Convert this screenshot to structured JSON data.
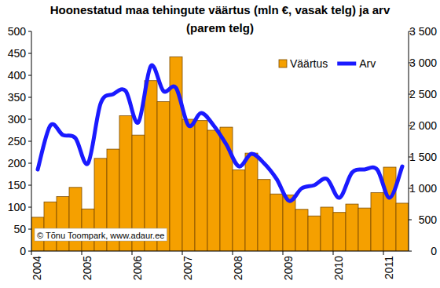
{
  "chart_data": {
    "type": "bar",
    "title": "Hoonestatud maa tehingute väärtus (mln €, vasak telg) ja arv (parem telg)",
    "categories": [
      "2004",
      null,
      null,
      null,
      "2005",
      null,
      null,
      null,
      "2006",
      null,
      null,
      null,
      "2007",
      null,
      null,
      null,
      "2008",
      null,
      null,
      null,
      "2009",
      null,
      null,
      null,
      "2010",
      null,
      null,
      null,
      "2011",
      null
    ],
    "series": [
      {
        "name": "Väärtus",
        "type": "bar",
        "color": "#f5a000",
        "values": [
          77,
          112,
          124,
          145,
          96,
          211,
          232,
          308,
          264,
          388,
          340,
          442,
          300,
          297,
          275,
          282,
          185,
          223,
          163,
          130,
          128,
          95,
          80,
          100,
          88,
          107,
          98,
          133,
          191,
          109
        ]
      },
      {
        "name": "Arv",
        "type": "line",
        "axis": "y2",
        "color": "#1a1aff",
        "values": [
          1300,
          2000,
          1850,
          1800,
          1400,
          2350,
          2500,
          2550,
          2050,
          2950,
          2550,
          2600,
          2000,
          2200,
          2000,
          1700,
          1350,
          1550,
          1400,
          1150,
          800,
          1000,
          1050,
          1150,
          850,
          1250,
          1300,
          1300,
          850,
          1350
        ]
      }
    ],
    "ylim": [
      0,
      500
    ],
    "yticks": [
      0,
      50,
      100,
      150,
      200,
      250,
      300,
      350,
      400,
      450,
      500
    ],
    "y2lim": [
      0,
      3500
    ],
    "y2ticks": [
      0,
      500,
      {
        "value": 1000,
        "label": "1 000"
      },
      {
        "value": 1500,
        "label": "1 500"
      },
      {
        "value": 2000,
        "label": "2 000"
      },
      {
        "value": 2500,
        "label": "2 500"
      },
      {
        "value": 3000,
        "label": "3 000"
      },
      {
        "value": 3500,
        "label": "3 500"
      }
    ],
    "grid": false,
    "legend": "upper right",
    "annotations": [
      "© Tõnu Toompark, www.adaur.ee"
    ]
  }
}
